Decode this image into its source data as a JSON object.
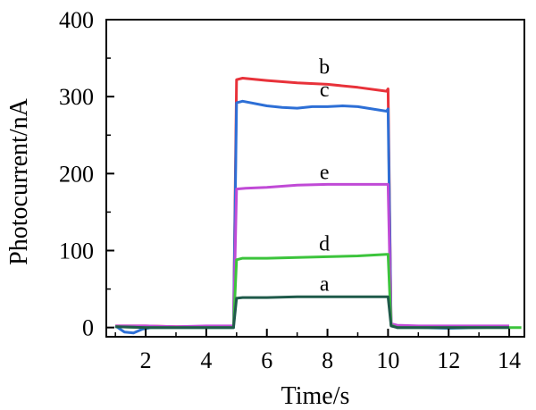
{
  "chart_data": {
    "type": "line",
    "title": "",
    "xlabel": "Time/s",
    "ylabel": "Photocurrent/nA",
    "xlim": [
      0.7,
      14.5
    ],
    "ylim": [
      -12,
      400
    ],
    "xticks": [
      2,
      4,
      6,
      8,
      10,
      12,
      14
    ],
    "yticks": [
      0,
      100,
      200,
      300,
      400
    ],
    "xtick_labels": [
      "2",
      "4",
      "6",
      "8",
      "10",
      "12",
      "14"
    ],
    "ytick_labels": [
      "0",
      "100",
      "200",
      "300",
      "400"
    ],
    "grid": false,
    "legend": "none",
    "series": [
      {
        "name": "b",
        "color": "#e8323a",
        "points": [
          [
            1.0,
            2
          ],
          [
            2.0,
            2
          ],
          [
            3.0,
            1
          ],
          [
            4.0,
            1
          ],
          [
            4.9,
            1
          ],
          [
            5.0,
            322
          ],
          [
            5.2,
            324
          ],
          [
            6.0,
            321
          ],
          [
            7.0,
            318
          ],
          [
            8.0,
            316
          ],
          [
            9.0,
            312
          ],
          [
            9.95,
            307
          ],
          [
            10.0,
            310
          ],
          [
            10.1,
            5
          ],
          [
            10.3,
            2
          ],
          [
            11.0,
            1
          ],
          [
            12.0,
            1
          ],
          [
            13.0,
            1
          ],
          [
            14.0,
            1
          ]
        ],
        "label_x": 7.9,
        "label_y": 330
      },
      {
        "name": "c",
        "color": "#2d6fd6",
        "points": [
          [
            1.0,
            2
          ],
          [
            1.3,
            -6
          ],
          [
            1.6,
            -7
          ],
          [
            1.9,
            -2
          ],
          [
            2.2,
            0
          ],
          [
            3.0,
            0
          ],
          [
            4.0,
            0
          ],
          [
            4.9,
            0
          ],
          [
            5.0,
            292
          ],
          [
            5.2,
            294
          ],
          [
            6.0,
            288
          ],
          [
            6.5,
            286
          ],
          [
            7.0,
            285
          ],
          [
            7.5,
            287
          ],
          [
            8.0,
            287
          ],
          [
            8.5,
            288
          ],
          [
            9.0,
            287
          ],
          [
            9.95,
            281
          ],
          [
            10.0,
            284
          ],
          [
            10.1,
            4
          ],
          [
            10.3,
            0
          ],
          [
            11.0,
            0
          ],
          [
            12.0,
            -1
          ],
          [
            13.0,
            0
          ],
          [
            14.0,
            1
          ]
        ],
        "label_x": 7.9,
        "label_y": 300
      },
      {
        "name": "e",
        "color": "#c04ad6",
        "points": [
          [
            1.0,
            2
          ],
          [
            2.0,
            2
          ],
          [
            3.0,
            1
          ],
          [
            4.0,
            2
          ],
          [
            4.9,
            2
          ],
          [
            5.0,
            180
          ],
          [
            5.3,
            181
          ],
          [
            6.0,
            182
          ],
          [
            7.0,
            185
          ],
          [
            8.0,
            186
          ],
          [
            9.0,
            186
          ],
          [
            9.95,
            186
          ],
          [
            10.0,
            186
          ],
          [
            10.1,
            5
          ],
          [
            10.3,
            3
          ],
          [
            11.0,
            2
          ],
          [
            12.0,
            2
          ],
          [
            13.0,
            2
          ],
          [
            14.0,
            2
          ]
        ],
        "label_x": 7.9,
        "label_y": 193
      },
      {
        "name": "d",
        "color": "#3cc43c",
        "points": [
          [
            1.0,
            1
          ],
          [
            2.0,
            0
          ],
          [
            3.0,
            0
          ],
          [
            4.0,
            0
          ],
          [
            4.9,
            0
          ],
          [
            5.0,
            88
          ],
          [
            5.2,
            90
          ],
          [
            6.0,
            90
          ],
          [
            7.0,
            91
          ],
          [
            8.0,
            92
          ],
          [
            9.0,
            93
          ],
          [
            9.95,
            95
          ],
          [
            10.0,
            95
          ],
          [
            10.1,
            3
          ],
          [
            10.3,
            0
          ],
          [
            11.0,
            0
          ],
          [
            12.0,
            0
          ],
          [
            13.0,
            0
          ],
          [
            14.0,
            0
          ],
          [
            14.4,
            0
          ]
        ],
        "label_x": 7.9,
        "label_y": 100
      },
      {
        "name": "a",
        "color": "#1f5a4a",
        "points": [
          [
            1.0,
            1
          ],
          [
            2.0,
            0
          ],
          [
            3.0,
            0
          ],
          [
            4.0,
            0
          ],
          [
            4.9,
            0
          ],
          [
            5.0,
            38
          ],
          [
            5.2,
            39
          ],
          [
            6.0,
            39
          ],
          [
            7.0,
            40
          ],
          [
            8.0,
            40
          ],
          [
            9.0,
            40
          ],
          [
            9.95,
            40
          ],
          [
            10.0,
            40
          ],
          [
            10.1,
            2
          ],
          [
            10.3,
            0
          ],
          [
            11.0,
            0
          ],
          [
            12.0,
            0
          ],
          [
            13.0,
            0
          ],
          [
            14.0,
            0
          ]
        ],
        "label_x": 7.9,
        "label_y": 48
      }
    ]
  }
}
